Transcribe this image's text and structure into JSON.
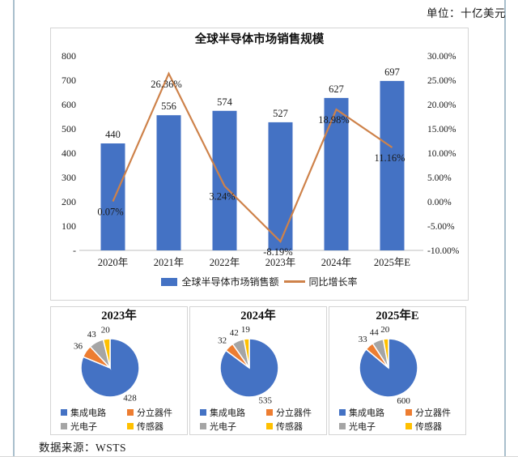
{
  "page": {
    "unit_label": "单位：十亿美元",
    "source_label": "数据来源：WSTS"
  },
  "colors": {
    "bar": "#4472C4",
    "line": "#CE824A",
    "pie": [
      "#4472C4",
      "#ED7D31",
      "#A5A5A5",
      "#FFC000"
    ],
    "panel_border": "#d4d4d4",
    "page_border": "#a9bfcc",
    "axis_line": "#bfbfbf"
  },
  "chart_data": [
    {
      "type": "bar+line",
      "title": "全球半导体市场销售规模",
      "categories": [
        "2020年",
        "2021年",
        "2022年",
        "2023年",
        "2024年",
        "2025年E"
      ],
      "series": [
        {
          "name": "全球半导体市场销售额",
          "type": "bar",
          "axis": "left",
          "color": "#4472C4",
          "values": [
            440,
            556,
            574,
            527,
            627,
            697
          ]
        },
        {
          "name": "同比增长率",
          "type": "line",
          "axis": "right",
          "color": "#CE824A",
          "values": [
            0.07,
            26.36,
            3.24,
            -8.19,
            18.98,
            11.16
          ],
          "point_labels": [
            "0.07%",
            "26.36%",
            "3.24%",
            "-8.19%",
            "18.98%",
            "11.16%"
          ]
        }
      ],
      "left_axis": {
        "min": 0,
        "max": 800,
        "ticks": [
          "800",
          "700",
          "600",
          "500",
          "400",
          "300",
          "200",
          "100",
          "-"
        ]
      },
      "right_axis": {
        "min": -10,
        "max": 30,
        "ticks": [
          "30.00%",
          "25.00%",
          "20.00%",
          "15.00%",
          "10.00%",
          "5.00%",
          "0.00%",
          "-5.00%",
          "-10.00%"
        ]
      },
      "grid": false,
      "legend_position": "bottom"
    },
    {
      "type": "pie",
      "title": "2023年",
      "labels": [
        "集成电路",
        "分立器件",
        "光电子",
        "传感器"
      ],
      "values": [
        428,
        36,
        43,
        20
      ],
      "colors": [
        "#4472C4",
        "#ED7D31",
        "#A5A5A5",
        "#FFC000"
      ]
    },
    {
      "type": "pie",
      "title": "2024年",
      "labels": [
        "集成电路",
        "分立器件",
        "光电子",
        "传感器"
      ],
      "values": [
        535,
        32,
        42,
        19
      ],
      "colors": [
        "#4472C4",
        "#ED7D31",
        "#A5A5A5",
        "#FFC000"
      ]
    },
    {
      "type": "pie",
      "title": "2025年E",
      "labels": [
        "集成电路",
        "分立器件",
        "光电子",
        "传感器"
      ],
      "values": [
        600,
        33,
        44,
        20
      ],
      "colors": [
        "#4472C4",
        "#ED7D31",
        "#A5A5A5",
        "#FFC000"
      ]
    }
  ]
}
